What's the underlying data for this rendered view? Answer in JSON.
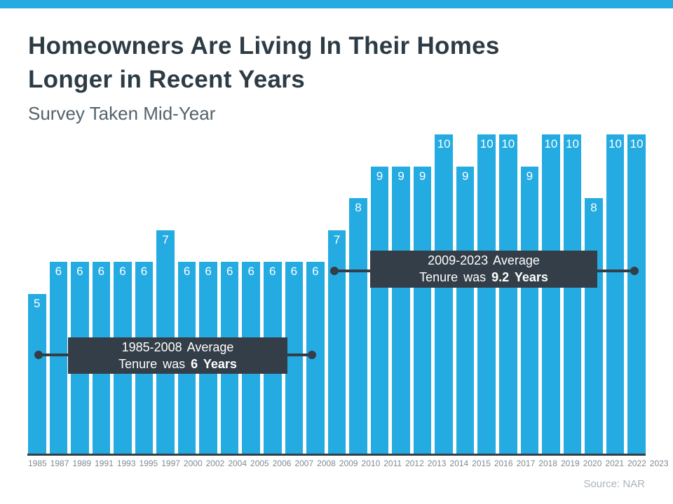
{
  "header": {
    "title_line1": "Homeowners Are Living In Their Homes",
    "title_line2": "Longer in Recent Years",
    "subtitle": "Survey Taken Mid-Year"
  },
  "chart_data": {
    "type": "bar",
    "title": "Homeowners Are Living In Their Homes Longer in Recent Years",
    "subtitle": "Survey Taken Mid-Year",
    "categories": [
      "1985",
      "1987",
      "1989",
      "1991",
      "1993",
      "1995",
      "1997",
      "2000",
      "2002",
      "2004",
      "2005",
      "2006",
      "2007",
      "2008",
      "2009",
      "2010",
      "2011",
      "2012",
      "2013",
      "2014",
      "2015",
      "2016",
      "2017",
      "2018",
      "2019",
      "2020",
      "2021",
      "2022",
      "2023"
    ],
    "values": [
      5,
      6,
      6,
      6,
      6,
      6,
      7,
      6,
      6,
      6,
      6,
      6,
      6,
      6,
      7,
      8,
      9,
      9,
      9,
      10,
      9,
      10,
      10,
      9,
      10,
      10,
      8,
      10,
      10
    ],
    "xlabel": "",
    "ylabel": "",
    "ylim": [
      0,
      10
    ],
    "grid": false,
    "legend": "none",
    "bar_color": "#24ABE2",
    "value_label_color": "#FFFFFF",
    "axis_line_color": "#333E48",
    "annotation_color": "#333E48",
    "annotations": [
      {
        "line1": "1985-2008 Average",
        "line2_prefix": "Tenure was ",
        "line2_bold": "6 Years",
        "span_years": "1985-2008",
        "average_value": 6
      },
      {
        "line1": "2009-2023 Average",
        "line2_prefix": "Tenure was ",
        "line2_bold": "9.2 Years",
        "span_years": "2009-2023",
        "average_value": 9.2
      }
    ]
  },
  "footer": {
    "source": "Source: NAR"
  }
}
